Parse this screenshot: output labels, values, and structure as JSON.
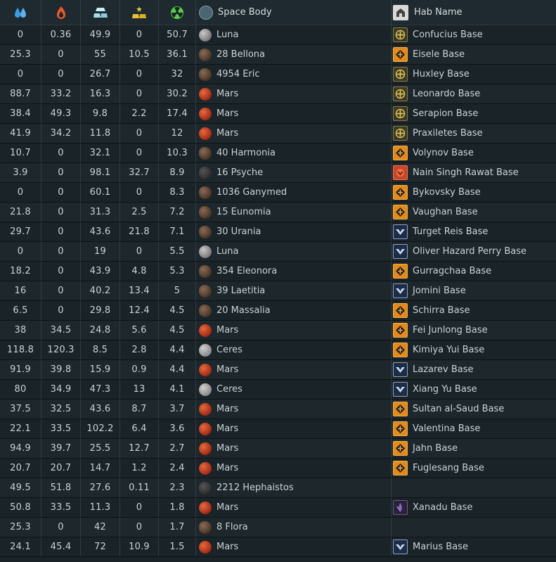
{
  "header": {
    "col_water_icon": "water-drop-icon",
    "col_volatiles_icon": "volatiles-flame-icon",
    "col_metals_icon": "metals-ingot-icon",
    "col_nobles_icon": "noble-metals-icon",
    "col_fissiles_icon": "fissiles-radiation-icon",
    "space_body": "Space Body",
    "hab_name": "Hab Name"
  },
  "colors": {
    "water": "#3d9be0",
    "volatiles": "#e85a2a",
    "metals": "#a8dce8",
    "nobles": "#f0d040",
    "fissiles": "#5ac84a",
    "background": "#1a2328"
  },
  "rows": [
    {
      "water": "0",
      "volatiles": "0.36",
      "metals": "49.9",
      "nobles": "0",
      "fissiles": "50.7",
      "body": "Luna",
      "body_type": "luna",
      "hab": "Confucius Base",
      "faction": "gold"
    },
    {
      "water": "25.3",
      "volatiles": "0",
      "metals": "55",
      "nobles": "10.5",
      "fissiles": "36.1",
      "body": "28 Bellona",
      "body_type": "asteroid",
      "hab": "Eisele Base",
      "faction": "orange"
    },
    {
      "water": "0",
      "volatiles": "0",
      "metals": "26.7",
      "nobles": "0",
      "fissiles": "32",
      "body": "4954 Eric",
      "body_type": "asteroid",
      "hab": "Huxley Base",
      "faction": "gold"
    },
    {
      "water": "88.7",
      "volatiles": "33.2",
      "metals": "16.3",
      "nobles": "0",
      "fissiles": "30.2",
      "body": "Mars",
      "body_type": "mars",
      "hab": "Leonardo Base",
      "faction": "gold"
    },
    {
      "water": "38.4",
      "volatiles": "49.3",
      "metals": "9.8",
      "nobles": "2.2",
      "fissiles": "17.4",
      "body": "Mars",
      "body_type": "mars",
      "hab": "Serapion Base",
      "faction": "gold"
    },
    {
      "water": "41.9",
      "volatiles": "34.2",
      "metals": "11.8",
      "nobles": "0",
      "fissiles": "12",
      "body": "Mars",
      "body_type": "mars",
      "hab": "Praxiletes Base",
      "faction": "gold"
    },
    {
      "water": "10.7",
      "volatiles": "0",
      "metals": "32.1",
      "nobles": "0",
      "fissiles": "10.3",
      "body": "40 Harmonia",
      "body_type": "asteroid",
      "hab": "Volynov Base",
      "faction": "orange"
    },
    {
      "water": "3.9",
      "volatiles": "0",
      "metals": "98.1",
      "nobles": "32.7",
      "fissiles": "8.9",
      "body": "16 Psyche",
      "body_type": "asteroid-dark",
      "hab": "Nain Singh Rawat Base",
      "faction": "red"
    },
    {
      "water": "0",
      "volatiles": "0",
      "metals": "60.1",
      "nobles": "0",
      "fissiles": "8.3",
      "body": "1036 Ganymed",
      "body_type": "asteroid",
      "hab": "Bykovsky Base",
      "faction": "orange"
    },
    {
      "water": "21.8",
      "volatiles": "0",
      "metals": "31.3",
      "nobles": "2.5",
      "fissiles": "7.2",
      "body": "15 Eunomia",
      "body_type": "asteroid",
      "hab": "Vaughan Base",
      "faction": "orange"
    },
    {
      "water": "29.7",
      "volatiles": "0",
      "metals": "43.6",
      "nobles": "21.8",
      "fissiles": "7.1",
      "body": "30 Urania",
      "body_type": "asteroid",
      "hab": "Turget Reis Base",
      "faction": "blue"
    },
    {
      "water": "0",
      "volatiles": "0",
      "metals": "19",
      "nobles": "0",
      "fissiles": "5.5",
      "body": "Luna",
      "body_type": "luna",
      "hab": "Oliver Hazard Perry Base",
      "faction": "blue"
    },
    {
      "water": "18.2",
      "volatiles": "0",
      "metals": "43.9",
      "nobles": "4.8",
      "fissiles": "5.3",
      "body": "354 Eleonora",
      "body_type": "asteroid",
      "hab": "Gurragchaa Base",
      "faction": "orange"
    },
    {
      "water": "16",
      "volatiles": "0",
      "metals": "40.2",
      "nobles": "13.4",
      "fissiles": "5",
      "body": "39 Laetitia",
      "body_type": "asteroid",
      "hab": "Jomini Base",
      "faction": "blue"
    },
    {
      "water": "6.5",
      "volatiles": "0",
      "metals": "29.8",
      "nobles": "12.4",
      "fissiles": "4.5",
      "body": "20 Massalia",
      "body_type": "asteroid",
      "hab": "Schirra Base",
      "faction": "orange"
    },
    {
      "water": "38",
      "volatiles": "34.5",
      "metals": "24.8",
      "nobles": "5.6",
      "fissiles": "4.5",
      "body": "Mars",
      "body_type": "mars",
      "hab": "Fei Junlong Base",
      "faction": "orange"
    },
    {
      "water": "118.8",
      "volatiles": "120.3",
      "metals": "8.5",
      "nobles": "2.8",
      "fissiles": "4.4",
      "body": "Ceres",
      "body_type": "ceres",
      "hab": "Kimiya Yui Base",
      "faction": "orange"
    },
    {
      "water": "91.9",
      "volatiles": "39.8",
      "metals": "15.9",
      "nobles": "0.9",
      "fissiles": "4.4",
      "body": "Mars",
      "body_type": "mars",
      "hab": "Lazarev Base",
      "faction": "blue"
    },
    {
      "water": "80",
      "volatiles": "34.9",
      "metals": "47.3",
      "nobles": "13",
      "fissiles": "4.1",
      "body": "Ceres",
      "body_type": "ceres",
      "hab": "Xiang Yu Base",
      "faction": "blue"
    },
    {
      "water": "37.5",
      "volatiles": "32.5",
      "metals": "43.6",
      "nobles": "8.7",
      "fissiles": "3.7",
      "body": "Mars",
      "body_type": "mars",
      "hab": "Sultan al-Saud Base",
      "faction": "orange"
    },
    {
      "water": "22.1",
      "volatiles": "33.5",
      "metals": "102.2",
      "nobles": "6.4",
      "fissiles": "3.6",
      "body": "Mars",
      "body_type": "mars",
      "hab": "Valentina Base",
      "faction": "orange"
    },
    {
      "water": "94.9",
      "volatiles": "39.7",
      "metals": "25.5",
      "nobles": "12.7",
      "fissiles": "2.7",
      "body": "Mars",
      "body_type": "mars",
      "hab": "Jahn Base",
      "faction": "orange"
    },
    {
      "water": "20.7",
      "volatiles": "20.7",
      "metals": "14.7",
      "nobles": "1.2",
      "fissiles": "2.4",
      "body": "Mars",
      "body_type": "mars",
      "hab": "Fuglesang Base",
      "faction": "orange"
    },
    {
      "water": "49.5",
      "volatiles": "51.8",
      "metals": "27.6",
      "nobles": "0.11",
      "fissiles": "2.3",
      "body": "2212 Hephaistos",
      "body_type": "asteroid-dark",
      "hab": "",
      "faction": ""
    },
    {
      "water": "50.8",
      "volatiles": "33.5",
      "metals": "11.3",
      "nobles": "0",
      "fissiles": "1.8",
      "body": "Mars",
      "body_type": "mars",
      "hab": "Xanadu Base",
      "faction": "purple"
    },
    {
      "water": "25.3",
      "volatiles": "0",
      "metals": "42",
      "nobles": "0",
      "fissiles": "1.7",
      "body": "8 Flora",
      "body_type": "asteroid",
      "hab": "",
      "faction": ""
    },
    {
      "water": "24.1",
      "volatiles": "45.4",
      "metals": "72",
      "nobles": "10.9",
      "fissiles": "1.5",
      "body": "Mars",
      "body_type": "mars",
      "hab": "Marius Base",
      "faction": "blue"
    }
  ]
}
